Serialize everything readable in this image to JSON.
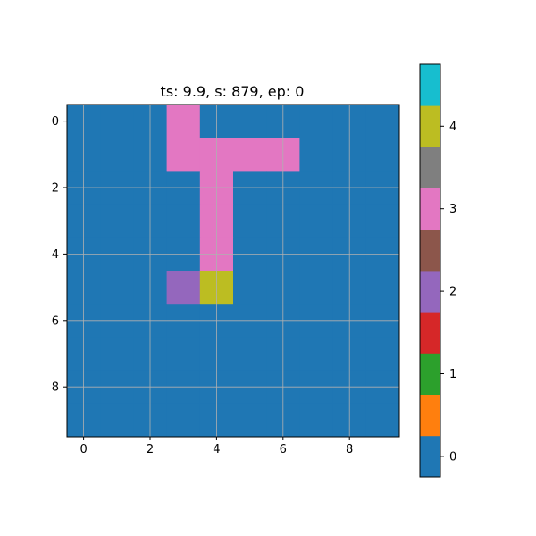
{
  "chart_data": {
    "type": "heatmap",
    "title": "ts: 9.9, s: 879, ep: 0",
    "xlabel": "",
    "ylabel": "",
    "xlim": [
      -0.5,
      9.5
    ],
    "ylim": [
      9.5,
      -0.5
    ],
    "x_ticks": [
      0,
      2,
      4,
      6,
      8
    ],
    "y_ticks": [
      0,
      2,
      4,
      6,
      8
    ],
    "grid": true,
    "grid_color": "#b0b0b0",
    "values": [
      [
        0,
        0,
        0,
        3,
        0,
        0,
        0,
        0,
        0,
        0
      ],
      [
        0,
        0,
        0,
        3,
        3,
        3,
        3,
        0,
        0,
        0
      ],
      [
        0,
        0,
        0,
        0,
        3,
        0,
        0,
        0,
        0,
        0
      ],
      [
        0,
        0,
        0,
        0,
        3,
        0,
        0,
        0,
        0,
        0
      ],
      [
        0,
        0,
        0,
        0,
        3,
        0,
        0,
        0,
        0,
        0
      ],
      [
        0,
        0,
        0,
        2,
        4,
        0,
        0,
        0,
        0,
        0
      ],
      [
        0,
        0,
        0,
        0,
        0,
        0,
        0,
        0,
        0,
        0
      ],
      [
        0,
        0,
        0,
        0,
        0,
        0,
        0,
        0,
        0,
        0
      ],
      [
        0,
        0,
        0,
        0,
        0,
        0,
        0,
        0,
        0,
        0
      ],
      [
        0,
        0,
        0,
        0,
        0,
        0,
        0,
        0,
        0,
        0
      ]
    ],
    "colorbar": {
      "range": [
        -0.25,
        4.75
      ],
      "colors": [
        "#1f77b4",
        "#ff7f0e",
        "#2ca02c",
        "#d62728",
        "#9467bd",
        "#8c564b",
        "#e377c2",
        "#7f7f7f",
        "#bcbd22",
        "#17becf"
      ],
      "ticks": [
        0,
        1,
        2,
        3,
        4
      ]
    }
  }
}
